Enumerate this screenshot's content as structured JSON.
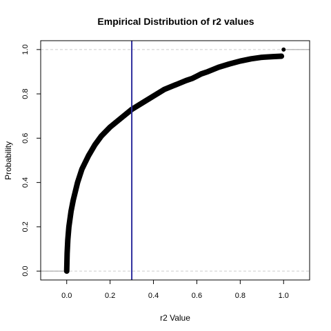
{
  "chart_data": {
    "type": "line",
    "title": "Empirical Distribution of r2 values",
    "xlabel": "r2 Value",
    "ylabel": "Probability",
    "xlim": [
      -0.12,
      1.12
    ],
    "ylim": [
      -0.04,
      1.04
    ],
    "x_ticks": [
      "0.0",
      "0.2",
      "0.4",
      "0.6",
      "0.8",
      "1.0"
    ],
    "y_ticks": [
      "0.0",
      "0.2",
      "0.4",
      "0.6",
      "0.8",
      "1.0"
    ],
    "reference_hlines": [
      0,
      1
    ],
    "reference_vline": 0.3,
    "series": [
      {
        "x": [
          0.0,
          0.002,
          0.005,
          0.01,
          0.02,
          0.03,
          0.05,
          0.07,
          0.1,
          0.13,
          0.16,
          0.2,
          0.25,
          0.3,
          0.35,
          0.4,
          0.45,
          0.5,
          0.55,
          0.58,
          0.6,
          0.62,
          0.65,
          0.7,
          0.75,
          0.8,
          0.85,
          0.9,
          0.95,
          0.99
        ],
        "y": [
          0.0,
          0.08,
          0.14,
          0.2,
          0.27,
          0.32,
          0.4,
          0.46,
          0.52,
          0.57,
          0.61,
          0.65,
          0.69,
          0.73,
          0.76,
          0.79,
          0.82,
          0.84,
          0.86,
          0.87,
          0.88,
          0.89,
          0.9,
          0.92,
          0.935,
          0.948,
          0.958,
          0.965,
          0.968,
          0.97
        ]
      }
    ],
    "isolated_points": [
      {
        "x": 1.0,
        "y": 1.0
      }
    ],
    "colors": {
      "curve": "#000000",
      "vline": "#2c2c9c",
      "reference": "#cccccc",
      "tail": "#999999",
      "axes": "#000000"
    },
    "grid": false,
    "legend": "none"
  }
}
